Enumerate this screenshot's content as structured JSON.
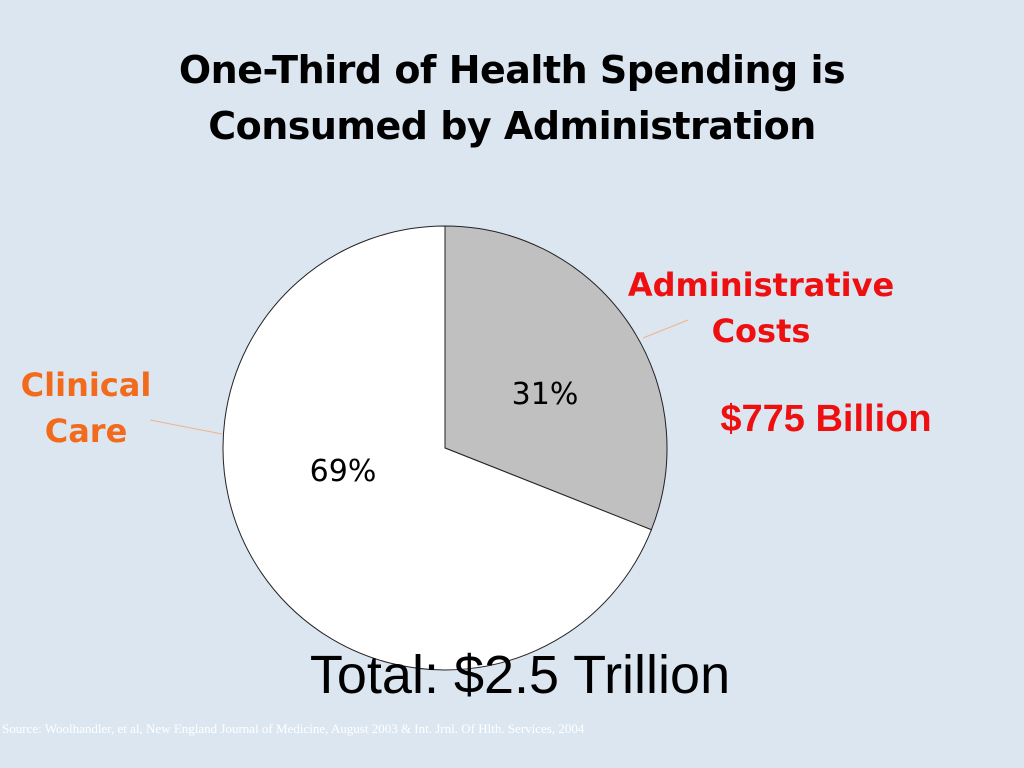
{
  "title_line1": "One-Third of Health Spending is",
  "title_line2": "Consumed by Administration",
  "labels": {
    "admin_line1": "Administrative",
    "admin_line2": "Costs",
    "clinical_line1": "Clinical",
    "clinical_line2": "Care",
    "admin_amount": "$775 Billion",
    "total": "Total: $2.5 Trillion",
    "source": "Source: Woolhandler, et al, New England Journal of Medicine, August 2003 & Int. Jrnl. Of Hlth. Services, 2004"
  },
  "colors": {
    "background": "#dce6f1",
    "admin_slice": "#c0c0c0",
    "clinical_slice": "#ffffff",
    "admin_text": "#ee1010",
    "clinical_text": "#f26a1b"
  },
  "chart_data": {
    "type": "pie",
    "title": "One-Third of Health Spending is Consumed by Administration",
    "slices": [
      {
        "label": "Administrative Costs",
        "value": 31,
        "display": "31%",
        "color": "#c0c0c0"
      },
      {
        "label": "Clinical Care",
        "value": 69,
        "display": "69%",
        "color": "#ffffff"
      }
    ],
    "start_angle": "12 o'clock",
    "direction": "clockwise",
    "legend": "none"
  }
}
